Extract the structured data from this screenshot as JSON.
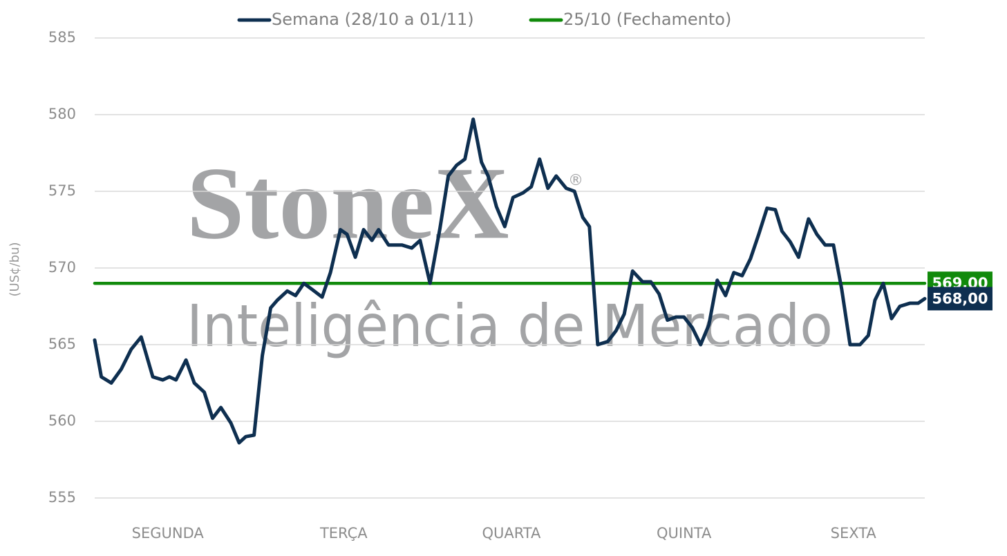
{
  "chart_data": {
    "type": "line",
    "y_label": "(US¢/bu)",
    "watermark": {
      "brand": "StoneX",
      "registered": "®",
      "tagline": "Inteligência de Mercado"
    },
    "xlim": [
      0,
      5
    ],
    "xticks": [
      {
        "value": 0.44,
        "label": "SEGUNDA"
      },
      {
        "value": 1.5,
        "label": "TERÇA"
      },
      {
        "value": 2.51,
        "label": "QUARTA"
      },
      {
        "value": 3.55,
        "label": "QUINTA"
      },
      {
        "value": 4.57,
        "label": "SEXTA"
      }
    ],
    "ylim": [
      555,
      585
    ],
    "yticks": [
      555,
      560,
      565,
      570,
      575,
      580,
      585
    ],
    "grid": true,
    "legend": "top",
    "series": [
      {
        "name": "Semana (28/10 a 01/11)",
        "color": "#0e2f50",
        "end_label": "568,00",
        "x": [
          0,
          0.04,
          0.1,
          0.16,
          0.22,
          0.28,
          0.35,
          0.41,
          0.45,
          0.49,
          0.55,
          0.6,
          0.66,
          0.71,
          0.76,
          0.82,
          0.87,
          0.91,
          0.96,
          1.01,
          1.06,
          1.1,
          1.16,
          1.21,
          1.26,
          1.31,
          1.37,
          1.42,
          1.48,
          1.52,
          1.57,
          1.62,
          1.67,
          1.71,
          1.77,
          1.85,
          1.91,
          1.96,
          2.02,
          2.08,
          2.13,
          2.18,
          2.23,
          2.28,
          2.33,
          2.37,
          2.42,
          2.47,
          2.52,
          2.58,
          2.63,
          2.68,
          2.73,
          2.78,
          2.84,
          2.89,
          2.94,
          2.98,
          3.03,
          3.09,
          3.14,
          3.19,
          3.24,
          3.3,
          3.35,
          3.4,
          3.45,
          3.5,
          3.55,
          3.6,
          3.65,
          3.7,
          3.75,
          3.8,
          3.85,
          3.9,
          3.95,
          4,
          4.05,
          4.1,
          4.14,
          4.19,
          4.24,
          4.3,
          4.35,
          4.4,
          4.45,
          4.5,
          4.55,
          4.61,
          4.66,
          4.7,
          4.75,
          4.8,
          4.85,
          4.91,
          4.96,
          5
        ],
        "values": [
          565.3,
          562.9,
          562.5,
          563.4,
          564.7,
          565.5,
          562.9,
          562.7,
          562.9,
          562.7,
          564.0,
          562.5,
          561.9,
          560.2,
          560.9,
          559.9,
          558.6,
          559.0,
          559.1,
          564.3,
          567.4,
          567.9,
          568.5,
          568.2,
          569.0,
          568.6,
          568.1,
          569.7,
          572.5,
          572.2,
          570.7,
          572.5,
          571.8,
          572.5,
          571.5,
          571.5,
          571.3,
          571.8,
          569.0,
          572.6,
          576.0,
          576.7,
          577.1,
          579.7,
          576.9,
          576.0,
          574.0,
          572.7,
          574.6,
          574.9,
          575.3,
          577.1,
          575.2,
          576.0,
          575.2,
          575.0,
          573.3,
          572.7,
          565.0,
          565.2,
          565.9,
          567.0,
          569.8,
          569.1,
          569.1,
          568.3,
          566.6,
          566.8,
          566.8,
          566.1,
          565.0,
          566.3,
          569.2,
          568.2,
          569.7,
          569.5,
          570.6,
          572.2,
          573.9,
          573.8,
          572.4,
          571.7,
          570.7,
          573.2,
          572.2,
          571.5,
          571.5,
          568.6,
          565.0,
          565.0,
          565.6,
          567.9,
          569.0,
          566.7,
          567.5,
          567.7,
          567.7,
          568.0
        ]
      },
      {
        "name": "25/10 (Fechamento)",
        "color": "#118a0b",
        "end_label": "569,00",
        "x": [
          0,
          5
        ],
        "values": [
          569,
          569
        ]
      }
    ]
  }
}
